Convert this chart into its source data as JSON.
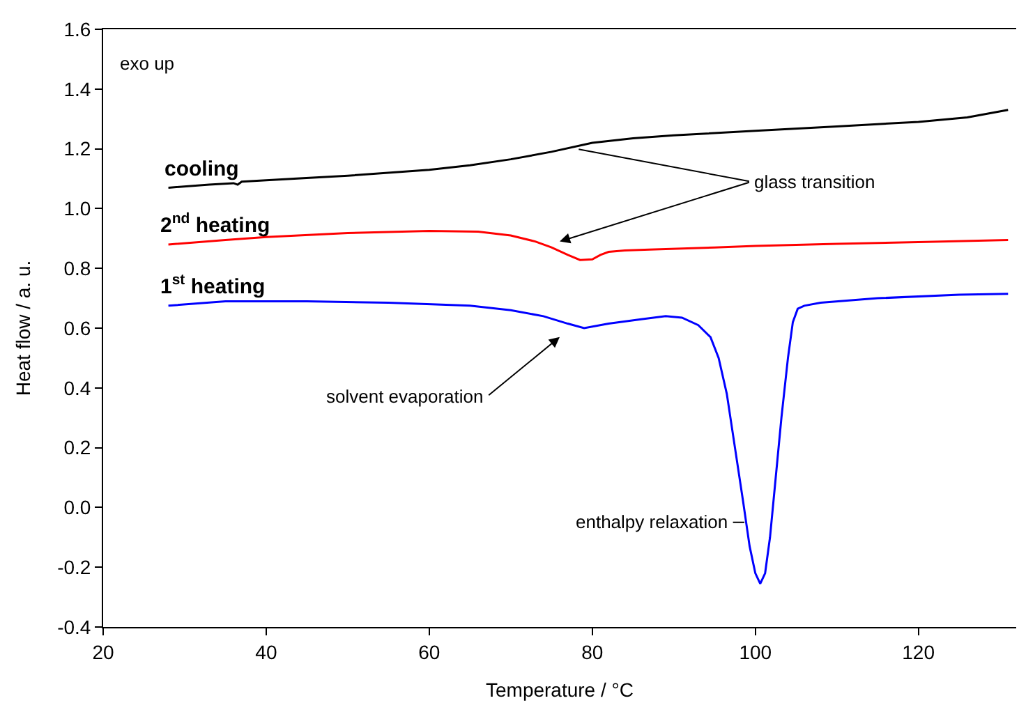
{
  "chart_data": {
    "type": "line",
    "xlabel": "Temperature / °C",
    "ylabel": "Heat flow / a. u.",
    "xlim": [
      20,
      132
    ],
    "xticks": [
      20,
      40,
      60,
      80,
      100,
      120
    ],
    "ylim": [
      -0.4,
      1.6
    ],
    "yticks": [
      -0.4,
      -0.2,
      {
        "value": 0,
        "label": "0.0"
      },
      0.2,
      0.4,
      0.6,
      0.8,
      {
        "value": 1,
        "label": "1.0"
      },
      1.2,
      1.4,
      1.6
    ],
    "legend": false,
    "marker": "none",
    "line_style": "solid",
    "annotations": [
      "exo up",
      {
        "text": "glass transition",
        "x": 78,
        "y": 1.2
      },
      "solvent evaporation",
      {
        "text": "enthalpy relaxation",
        "x": 99,
        "y": -0.05
      }
    ],
    "series": [
      {
        "name": "cooling",
        "color": "#000000",
        "x": [
          28,
          33,
          36,
          36.5,
          37,
          40,
          50,
          60,
          65,
          70,
          75,
          80,
          85,
          90,
          100,
          110,
          120,
          126,
          131
        ],
        "values": [
          1.07,
          1.08,
          1.085,
          1.08,
          1.09,
          1.095,
          1.11,
          1.13,
          1.145,
          1.165,
          1.19,
          1.22,
          1.235,
          1.245,
          1.26,
          1.275,
          1.29,
          1.305,
          1.33
        ]
      },
      {
        "name": "2$^{nd}$ heating",
        "color": "#ff0000",
        "x": [
          28,
          35,
          40,
          50,
          60,
          66,
          70,
          73,
          75,
          77,
          78.5,
          80,
          81,
          82,
          84,
          87,
          95,
          100,
          110,
          120,
          131
        ],
        "values": [
          0.88,
          0.895,
          0.905,
          0.918,
          0.925,
          0.923,
          0.91,
          0.89,
          0.87,
          0.845,
          0.828,
          0.83,
          0.845,
          0.855,
          0.86,
          0.863,
          0.87,
          0.875,
          0.882,
          0.888,
          0.895
        ]
      },
      {
        "name": "1$^{st}$ heating",
        "color": "#0000ff",
        "x": [
          28,
          35,
          45,
          55,
          65,
          70,
          74,
          77,
          79,
          82,
          86,
          89,
          91,
          93,
          94.5,
          95.5,
          96.5,
          97.5,
          98.5,
          99.3,
          100,
          100.6,
          101.2,
          101.8,
          102.5,
          103.2,
          104,
          104.6,
          105.2,
          106,
          108,
          115,
          125,
          131
        ],
        "values": [
          0.675,
          0.69,
          0.69,
          0.685,
          0.675,
          0.66,
          0.64,
          0.615,
          0.6,
          0.615,
          0.63,
          0.64,
          0.635,
          0.61,
          0.57,
          0.5,
          0.38,
          0.2,
          0.02,
          -0.13,
          -0.22,
          -0.255,
          -0.22,
          -0.1,
          0.1,
          0.3,
          0.5,
          0.62,
          0.665,
          0.675,
          0.685,
          0.7,
          0.712,
          0.715
        ]
      }
    ]
  }
}
